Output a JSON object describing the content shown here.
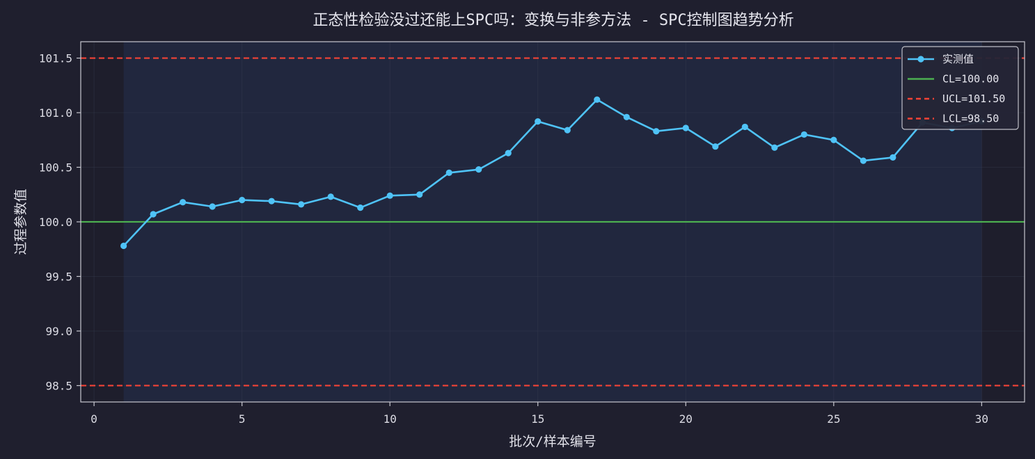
{
  "chart_data": {
    "type": "line",
    "title": "正态性检验没过还能上SPC吗：变换与非参方法 - SPC控制图趋势分析",
    "xlabel": "批次/样本编号",
    "ylabel": "过程参数值",
    "xlim": [
      -0.45,
      31.45
    ],
    "ylim": [
      98.35,
      101.65
    ],
    "xticks": [
      0,
      5,
      10,
      15,
      20,
      25,
      30
    ],
    "yticks": [
      98.5,
      99.0,
      99.5,
      100.0,
      100.5,
      101.0,
      101.5
    ],
    "xtick_labels": [
      "0",
      "5",
      "10",
      "15",
      "20",
      "25",
      "30"
    ],
    "ytick_labels": [
      "98.5",
      "99.0",
      "99.5",
      "100.0",
      "100.5",
      "101.0",
      "101.5"
    ],
    "grid": true,
    "legend_position": "top-right",
    "shaded_region": [
      1,
      30
    ],
    "series": [
      {
        "name": "实测值",
        "color": "#4fc3f7",
        "x": [
          1,
          2,
          3,
          4,
          5,
          6,
          7,
          8,
          9,
          10,
          11,
          12,
          13,
          14,
          15,
          16,
          17,
          18,
          19,
          20,
          21,
          22,
          23,
          24,
          25,
          26,
          27,
          28,
          29,
          30
        ],
        "y": [
          99.78,
          100.07,
          100.18,
          100.14,
          100.2,
          100.19,
          100.16,
          100.23,
          100.13,
          100.24,
          100.25,
          100.45,
          100.48,
          100.63,
          100.92,
          100.84,
          101.12,
          100.96,
          100.83,
          100.86,
          100.69,
          100.87,
          100.68,
          100.8,
          100.75,
          100.56,
          100.59,
          100.91,
          100.86,
          100.92
        ]
      }
    ],
    "reference_lines": [
      {
        "name": "CL=100.00",
        "value": 100.0,
        "color": "#4caf50",
        "style": "solid"
      },
      {
        "name": "UCL=101.50",
        "value": 101.5,
        "color": "#f44336",
        "style": "dashed"
      },
      {
        "name": "LCL=98.50",
        "value": 98.5,
        "color": "#f44336",
        "style": "dashed"
      }
    ]
  }
}
